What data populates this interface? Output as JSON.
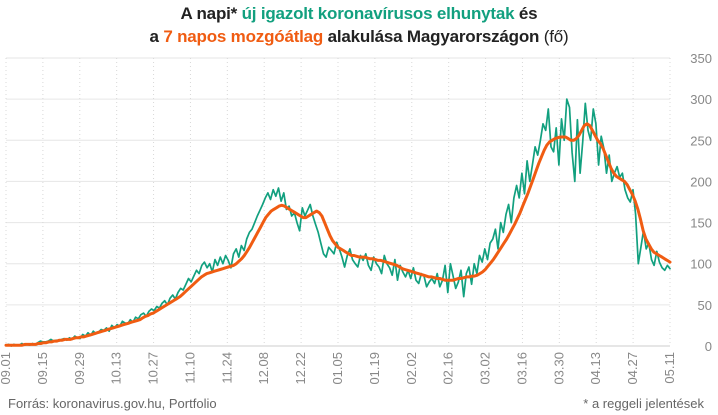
{
  "title": {
    "line1_a": "A napi* ",
    "line1_b": "új igazolt koronavírusos elhunytak",
    "line1_c": " és",
    "line2_a": "a ",
    "line2_b": "7 napos mozgóátlag",
    "line2_c": " alakulása Magyarországon",
    "line2_d": " (fő)"
  },
  "footer": {
    "source": "Forrás: koronavirus.gov.hu, Portfolio",
    "note": "* a reggeli jelentések"
  },
  "colors": {
    "daily": "#12a07f",
    "average": "#f05c12",
    "grid": "#e6e6e6",
    "axis_text": "#888888"
  },
  "chart_data": {
    "type": "line",
    "title": "A napi* új igazolt koronavírusos elhunytak és a 7 napos mozgóátlag alakulása Magyarországon (fő)",
    "xlabel": "",
    "ylabel": "",
    "x_start": "2020-09-01",
    "x_end": "2021-05-11",
    "xticks": [
      "09.01",
      "09.15",
      "09.29",
      "10.13",
      "10.27",
      "11.10",
      "11.24",
      "12.08",
      "12.22",
      "01.05",
      "01.19",
      "02.02",
      "02.16",
      "03.02",
      "03.16",
      "03.30",
      "04.13",
      "04.27",
      "05.11"
    ],
    "yticks": [
      0,
      50,
      100,
      150,
      200,
      250,
      300,
      350
    ],
    "ylim": [
      0,
      350
    ],
    "y_axis_position": "right",
    "grid": "vertical dotted and horizontal lines",
    "series": [
      {
        "role": "daily",
        "values": [
          1,
          2,
          0,
          2,
          1,
          1,
          3,
          1,
          2,
          1,
          3,
          2,
          4,
          6,
          5,
          5,
          6,
          8,
          6,
          7,
          6,
          8,
          9,
          7,
          10,
          8,
          12,
          10,
          9,
          14,
          12,
          16,
          13,
          18,
          15,
          17,
          20,
          19,
          22,
          18,
          25,
          22,
          26,
          24,
          30,
          28,
          27,
          32,
          29,
          35,
          33,
          38,
          40,
          36,
          42,
          45,
          43,
          48,
          46,
          52,
          55,
          50,
          58,
          62,
          57,
          65,
          70,
          68,
          75,
          82,
          78,
          85,
          92,
          88,
          98,
          102,
          95,
          100,
          90,
          105,
          98,
          108,
          100,
          110,
          104,
          95,
          112,
          118,
          108,
          122,
          116,
          130,
          138,
          142,
          150,
          158,
          165,
          172,
          180,
          186,
          178,
          190,
          182,
          192,
          176,
          186,
          166,
          170,
          158,
          162,
          150,
          140,
          168,
          158,
          165,
          172,
          158,
          148,
          138,
          125,
          112,
          108,
          120,
          116,
          112,
          126,
          118,
          108,
          96,
          110,
          118,
          105,
          100,
          96,
          110,
          104,
          112,
          98,
          92,
          108,
          100,
          96,
          88,
          110,
          100,
          95,
          86,
          105,
          80,
          98,
          90,
          84,
          92,
          82,
          95,
          80,
          76,
          88,
          85,
          72,
          78,
          82,
          76,
          88,
          72,
          80,
          98,
          65,
          100,
          85,
          70,
          78,
          92,
          60,
          88,
          96,
          75,
          100,
          88,
          110,
          102,
          118,
          105,
          125,
          130,
          142,
          118,
          150,
          138,
          160,
          172,
          150,
          180,
          195,
          180,
          210,
          185,
          225,
          200,
          220,
          242,
          232,
          250,
          270,
          262,
          288,
          242,
          236,
          265,
          220,
          276,
          250,
          300,
          290,
          235,
          200,
          275,
          210,
          248,
          295,
          262,
          250,
          288,
          270,
          220,
          255,
          240,
          210,
          232,
          200,
          210,
          218,
          205,
          210,
          190,
          180,
          175,
          190,
          160,
          100,
          120,
          140,
          118,
          125,
          105,
          98,
          115,
          102,
          95,
          92,
          98,
          94
        ]
      },
      {
        "role": "average",
        "values": [
          1,
          1,
          1,
          1,
          1,
          1,
          1,
          2,
          2,
          2,
          2,
          2,
          3,
          3,
          4,
          4,
          5,
          5,
          6,
          6,
          7,
          7,
          8,
          8,
          8,
          9,
          10,
          10,
          11,
          11,
          12,
          13,
          14,
          15,
          16,
          17,
          18,
          19,
          20,
          21,
          22,
          23,
          24,
          25,
          26,
          27,
          28,
          29,
          30,
          31,
          32,
          34,
          36,
          37,
          39,
          40,
          42,
          44,
          46,
          48,
          50,
          52,
          54,
          56,
          58,
          60,
          63,
          66,
          69,
          72,
          75,
          78,
          81,
          84,
          86,
          88,
          89,
          90,
          91,
          92,
          93,
          94,
          95,
          96,
          97,
          98,
          100,
          103,
          106,
          110,
          115,
          120,
          126,
          132,
          138,
          144,
          150,
          156,
          160,
          164,
          166,
          168,
          170,
          171,
          170,
          168,
          166,
          164,
          162,
          160,
          158,
          156,
          156,
          158,
          160,
          162,
          164,
          162,
          158,
          150,
          142,
          134,
          128,
          124,
          120,
          118,
          116,
          114,
          112,
          110,
          110,
          109,
          108,
          108,
          108,
          107,
          106,
          106,
          105,
          104,
          104,
          103,
          102,
          101,
          100,
          99,
          98,
          96,
          94,
          93,
          92,
          91,
          90,
          89,
          88,
          87,
          86,
          85,
          84,
          84,
          83,
          82,
          82,
          81,
          80,
          80,
          80,
          80,
          81,
          82,
          82,
          83,
          84,
          84,
          85,
          85,
          86,
          88,
          90,
          93,
          97,
          101,
          105,
          110,
          115,
          120,
          125,
          130,
          136,
          142,
          148,
          155,
          162,
          170,
          178,
          186,
          195,
          204,
          213,
          222,
          230,
          238,
          244,
          248,
          250,
          252,
          253,
          254,
          254,
          254,
          252,
          250,
          250,
          252,
          256,
          262,
          268,
          270,
          268,
          262,
          256,
          250,
          246,
          240,
          232,
          224,
          216,
          210,
          206,
          204,
          202,
          200,
          196,
          190,
          184,
          176,
          166,
          154,
          140,
          130,
          124,
          118,
          114,
          112,
          110,
          108,
          106,
          104,
          102
        ]
      }
    ]
  }
}
